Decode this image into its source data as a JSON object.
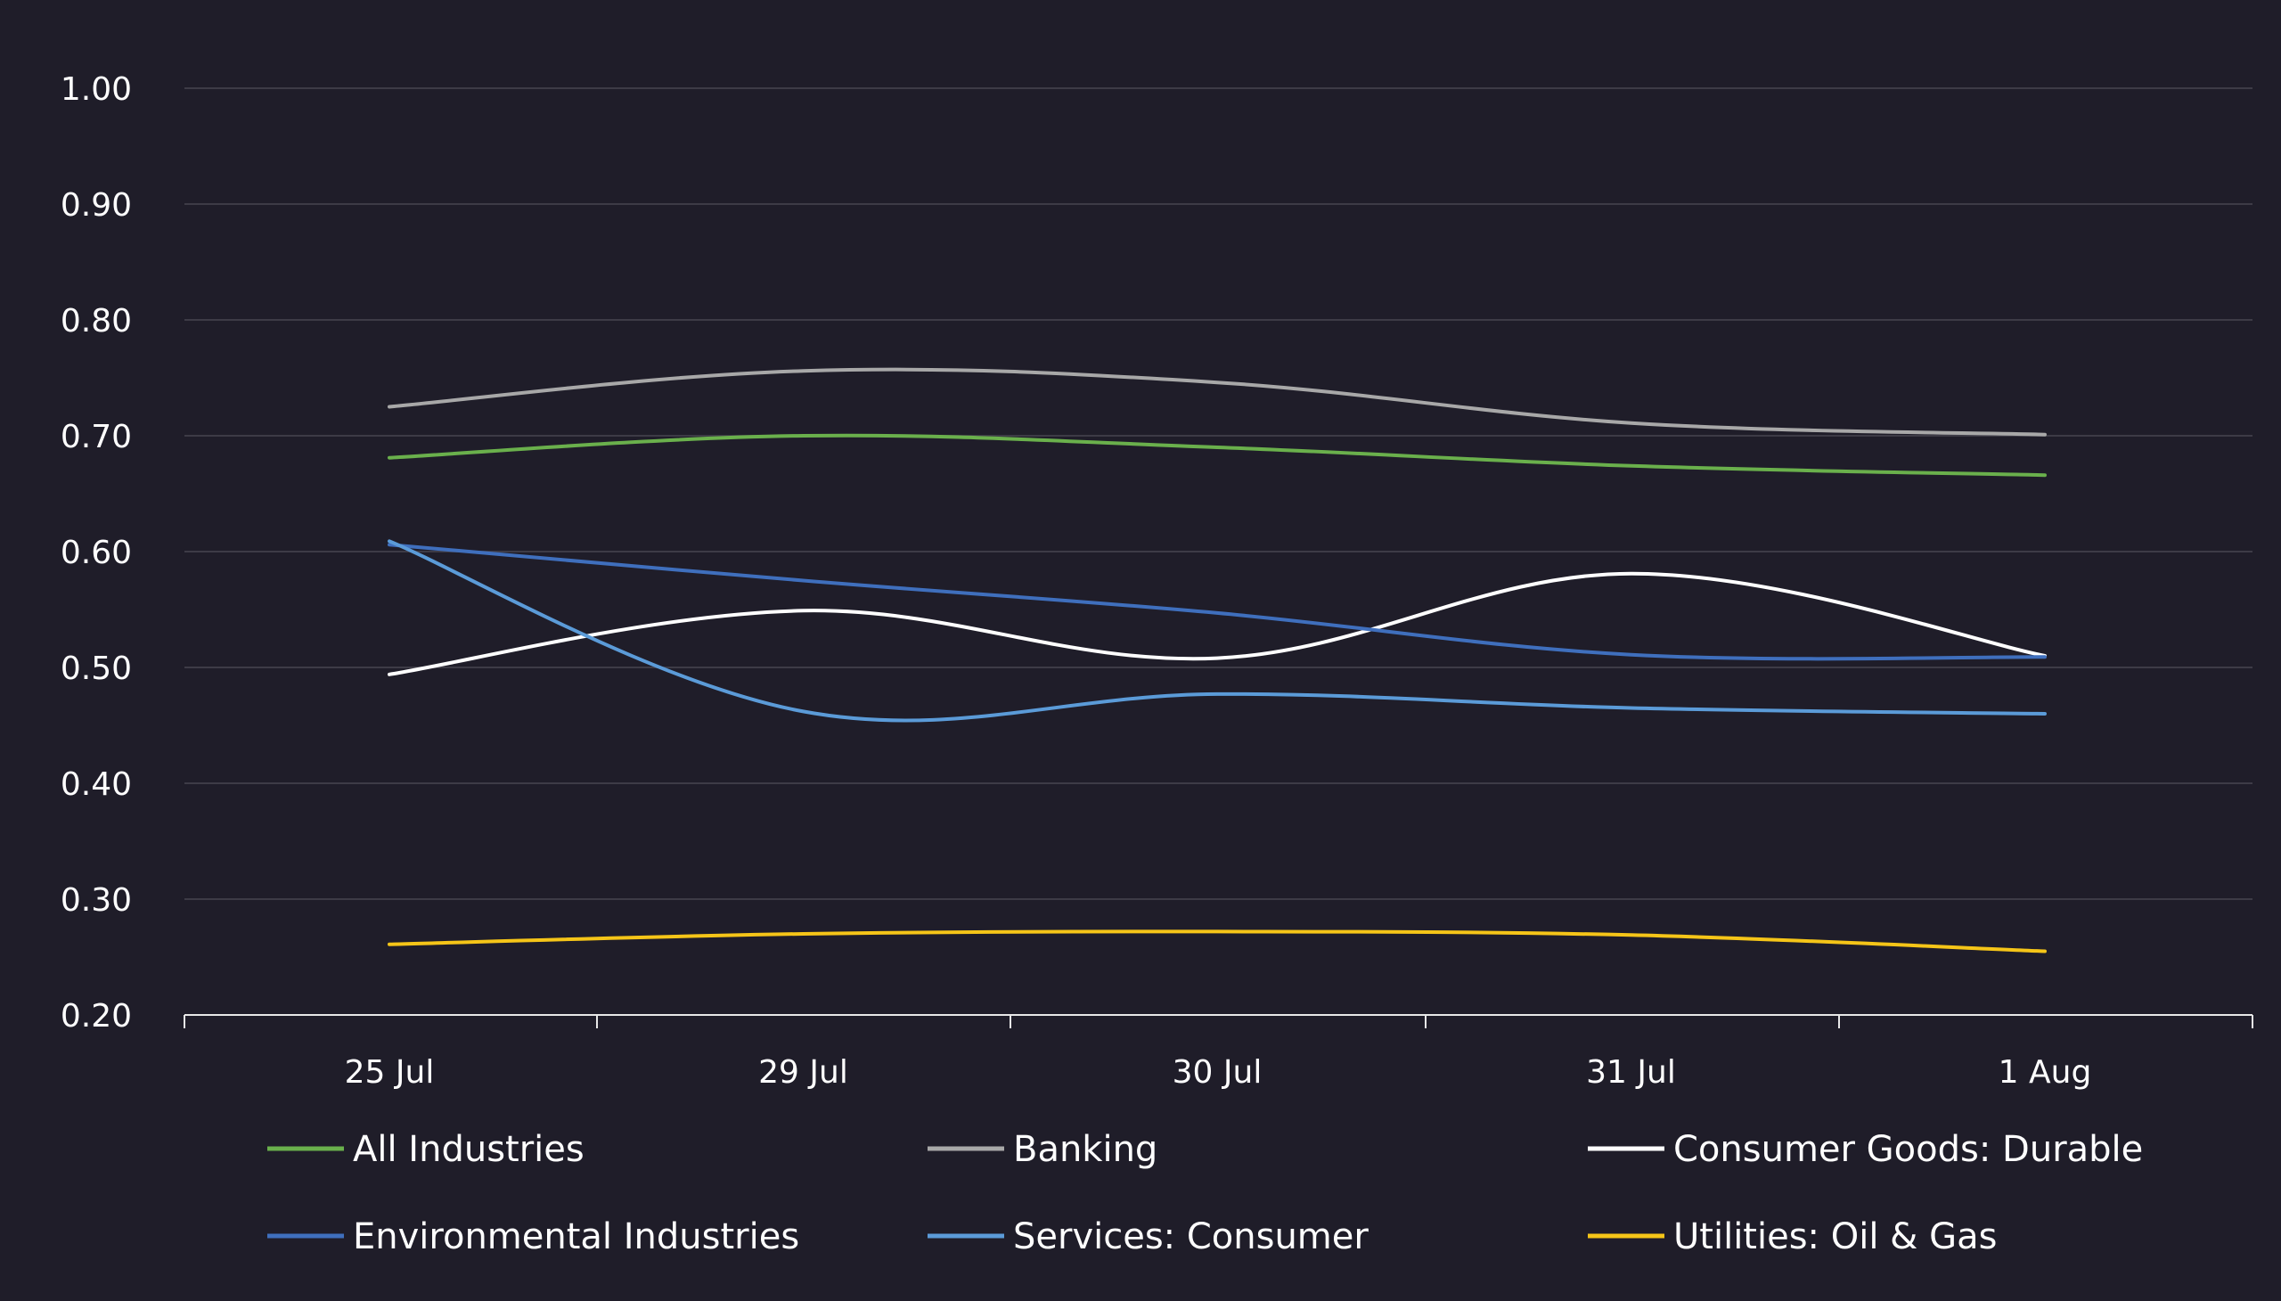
{
  "chart_data": {
    "type": "line",
    "title": "",
    "xlabel": "",
    "ylabel": "",
    "categories": [
      "25 Jul",
      "29 Jul",
      "30 Jul",
      "31 Jul",
      "1 Aug"
    ],
    "ylim": [
      0.2,
      1.0
    ],
    "yticks": [
      "1.00",
      "0.90",
      "0.80",
      "0.70",
      "0.60",
      "0.50",
      "0.40",
      "0.30",
      "0.20"
    ],
    "grid": true,
    "legend_position": "bottom",
    "series": [
      {
        "name": "All Industries",
        "color": "#6ab04c",
        "values": [
          0.681,
          0.7,
          0.69,
          0.674,
          0.666
        ]
      },
      {
        "name": "Banking",
        "color": "#a8a8a8",
        "values": [
          0.725,
          0.756,
          0.746,
          0.711,
          0.701
        ]
      },
      {
        "name": "Consumer Goods: Durable",
        "color": "#ffffff",
        "values": [
          0.494,
          0.549,
          0.508,
          0.581,
          0.51
        ]
      },
      {
        "name": "Environmental Industries",
        "color": "#3f6fbd",
        "values": [
          0.606,
          0.575,
          0.547,
          0.511,
          0.509
        ]
      },
      {
        "name": "Services: Consumer",
        "color": "#5b9bd8",
        "values": [
          0.609,
          0.462,
          0.477,
          0.465,
          0.46
        ]
      },
      {
        "name": "Utilities: Oil & Gas",
        "color": "#f5c518",
        "values": [
          0.261,
          0.27,
          0.272,
          0.269,
          0.255
        ]
      }
    ]
  }
}
